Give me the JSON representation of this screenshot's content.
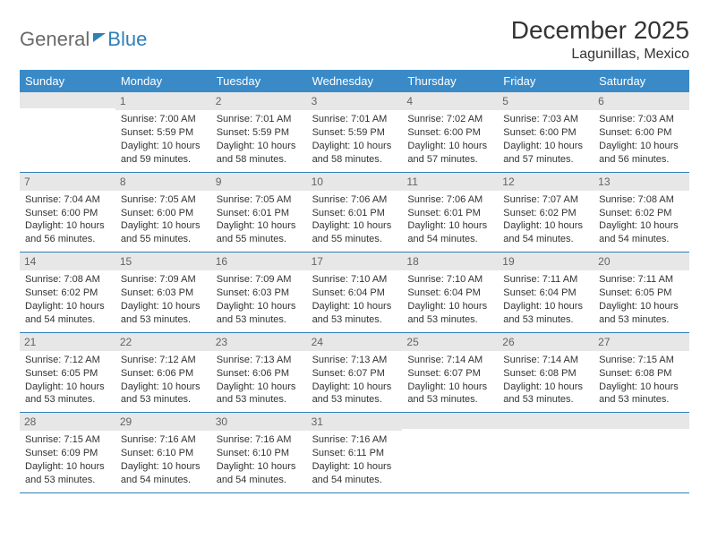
{
  "logo": {
    "part1": "General",
    "part2": "Blue"
  },
  "header": {
    "title": "December 2025",
    "location": "Lagunillas, Mexico"
  },
  "days": [
    "Sunday",
    "Monday",
    "Tuesday",
    "Wednesday",
    "Thursday",
    "Friday",
    "Saturday"
  ],
  "colors": {
    "header_bg": "#3a8ac8",
    "header_text": "#ffffff",
    "rule": "#2f7fb8",
    "daynum_bg": "#e7e7e7",
    "daynum_text": "#636363",
    "body_text": "#333333",
    "logo_gray": "#6a6a6a",
    "logo_blue": "#2f7fb8"
  },
  "weeks": [
    [
      {
        "n": "",
        "sunrise": "",
        "sunset": "",
        "daylight": ""
      },
      {
        "n": "1",
        "sunrise": "Sunrise: 7:00 AM",
        "sunset": "Sunset: 5:59 PM",
        "daylight": "Daylight: 10 hours and 59 minutes."
      },
      {
        "n": "2",
        "sunrise": "Sunrise: 7:01 AM",
        "sunset": "Sunset: 5:59 PM",
        "daylight": "Daylight: 10 hours and 58 minutes."
      },
      {
        "n": "3",
        "sunrise": "Sunrise: 7:01 AM",
        "sunset": "Sunset: 5:59 PM",
        "daylight": "Daylight: 10 hours and 58 minutes."
      },
      {
        "n": "4",
        "sunrise": "Sunrise: 7:02 AM",
        "sunset": "Sunset: 6:00 PM",
        "daylight": "Daylight: 10 hours and 57 minutes."
      },
      {
        "n": "5",
        "sunrise": "Sunrise: 7:03 AM",
        "sunset": "Sunset: 6:00 PM",
        "daylight": "Daylight: 10 hours and 57 minutes."
      },
      {
        "n": "6",
        "sunrise": "Sunrise: 7:03 AM",
        "sunset": "Sunset: 6:00 PM",
        "daylight": "Daylight: 10 hours and 56 minutes."
      }
    ],
    [
      {
        "n": "7",
        "sunrise": "Sunrise: 7:04 AM",
        "sunset": "Sunset: 6:00 PM",
        "daylight": "Daylight: 10 hours and 56 minutes."
      },
      {
        "n": "8",
        "sunrise": "Sunrise: 7:05 AM",
        "sunset": "Sunset: 6:00 PM",
        "daylight": "Daylight: 10 hours and 55 minutes."
      },
      {
        "n": "9",
        "sunrise": "Sunrise: 7:05 AM",
        "sunset": "Sunset: 6:01 PM",
        "daylight": "Daylight: 10 hours and 55 minutes."
      },
      {
        "n": "10",
        "sunrise": "Sunrise: 7:06 AM",
        "sunset": "Sunset: 6:01 PM",
        "daylight": "Daylight: 10 hours and 55 minutes."
      },
      {
        "n": "11",
        "sunrise": "Sunrise: 7:06 AM",
        "sunset": "Sunset: 6:01 PM",
        "daylight": "Daylight: 10 hours and 54 minutes."
      },
      {
        "n": "12",
        "sunrise": "Sunrise: 7:07 AM",
        "sunset": "Sunset: 6:02 PM",
        "daylight": "Daylight: 10 hours and 54 minutes."
      },
      {
        "n": "13",
        "sunrise": "Sunrise: 7:08 AM",
        "sunset": "Sunset: 6:02 PM",
        "daylight": "Daylight: 10 hours and 54 minutes."
      }
    ],
    [
      {
        "n": "14",
        "sunrise": "Sunrise: 7:08 AM",
        "sunset": "Sunset: 6:02 PM",
        "daylight": "Daylight: 10 hours and 54 minutes."
      },
      {
        "n": "15",
        "sunrise": "Sunrise: 7:09 AM",
        "sunset": "Sunset: 6:03 PM",
        "daylight": "Daylight: 10 hours and 53 minutes."
      },
      {
        "n": "16",
        "sunrise": "Sunrise: 7:09 AM",
        "sunset": "Sunset: 6:03 PM",
        "daylight": "Daylight: 10 hours and 53 minutes."
      },
      {
        "n": "17",
        "sunrise": "Sunrise: 7:10 AM",
        "sunset": "Sunset: 6:04 PM",
        "daylight": "Daylight: 10 hours and 53 minutes."
      },
      {
        "n": "18",
        "sunrise": "Sunrise: 7:10 AM",
        "sunset": "Sunset: 6:04 PM",
        "daylight": "Daylight: 10 hours and 53 minutes."
      },
      {
        "n": "19",
        "sunrise": "Sunrise: 7:11 AM",
        "sunset": "Sunset: 6:04 PM",
        "daylight": "Daylight: 10 hours and 53 minutes."
      },
      {
        "n": "20",
        "sunrise": "Sunrise: 7:11 AM",
        "sunset": "Sunset: 6:05 PM",
        "daylight": "Daylight: 10 hours and 53 minutes."
      }
    ],
    [
      {
        "n": "21",
        "sunrise": "Sunrise: 7:12 AM",
        "sunset": "Sunset: 6:05 PM",
        "daylight": "Daylight: 10 hours and 53 minutes."
      },
      {
        "n": "22",
        "sunrise": "Sunrise: 7:12 AM",
        "sunset": "Sunset: 6:06 PM",
        "daylight": "Daylight: 10 hours and 53 minutes."
      },
      {
        "n": "23",
        "sunrise": "Sunrise: 7:13 AM",
        "sunset": "Sunset: 6:06 PM",
        "daylight": "Daylight: 10 hours and 53 minutes."
      },
      {
        "n": "24",
        "sunrise": "Sunrise: 7:13 AM",
        "sunset": "Sunset: 6:07 PM",
        "daylight": "Daylight: 10 hours and 53 minutes."
      },
      {
        "n": "25",
        "sunrise": "Sunrise: 7:14 AM",
        "sunset": "Sunset: 6:07 PM",
        "daylight": "Daylight: 10 hours and 53 minutes."
      },
      {
        "n": "26",
        "sunrise": "Sunrise: 7:14 AM",
        "sunset": "Sunset: 6:08 PM",
        "daylight": "Daylight: 10 hours and 53 minutes."
      },
      {
        "n": "27",
        "sunrise": "Sunrise: 7:15 AM",
        "sunset": "Sunset: 6:08 PM",
        "daylight": "Daylight: 10 hours and 53 minutes."
      }
    ],
    [
      {
        "n": "28",
        "sunrise": "Sunrise: 7:15 AM",
        "sunset": "Sunset: 6:09 PM",
        "daylight": "Daylight: 10 hours and 53 minutes."
      },
      {
        "n": "29",
        "sunrise": "Sunrise: 7:16 AM",
        "sunset": "Sunset: 6:10 PM",
        "daylight": "Daylight: 10 hours and 54 minutes."
      },
      {
        "n": "30",
        "sunrise": "Sunrise: 7:16 AM",
        "sunset": "Sunset: 6:10 PM",
        "daylight": "Daylight: 10 hours and 54 minutes."
      },
      {
        "n": "31",
        "sunrise": "Sunrise: 7:16 AM",
        "sunset": "Sunset: 6:11 PM",
        "daylight": "Daylight: 10 hours and 54 minutes."
      },
      {
        "n": "",
        "sunrise": "",
        "sunset": "",
        "daylight": ""
      },
      {
        "n": "",
        "sunrise": "",
        "sunset": "",
        "daylight": ""
      },
      {
        "n": "",
        "sunrise": "",
        "sunset": "",
        "daylight": ""
      }
    ]
  ]
}
